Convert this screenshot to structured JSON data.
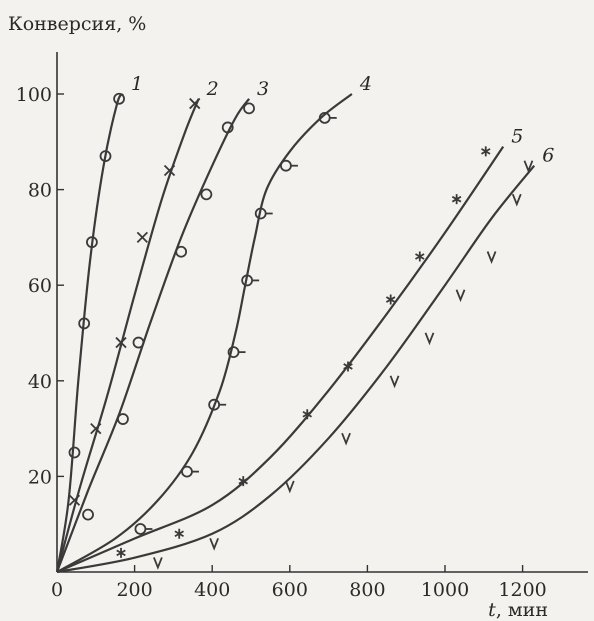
{
  "chart_data": {
    "type": "scatter",
    "ylabel": "Конверсия, %",
    "xlabel_var": "t",
    "xlabel_unit": ", мин",
    "xlim": [
      0,
      1300
    ],
    "ylim": [
      0,
      110
    ],
    "xticks": [
      0,
      200,
      400,
      600,
      800,
      1000,
      1200
    ],
    "yticks": [
      20,
      40,
      60,
      80,
      100
    ],
    "series": [
      {
        "name": "1",
        "marker": "circle",
        "points": [
          [
            45,
            25
          ],
          [
            70,
            52
          ],
          [
            90,
            69
          ],
          [
            125,
            87
          ],
          [
            160,
            99
          ]
        ],
        "curve": [
          [
            0,
            0
          ],
          [
            30,
            15
          ],
          [
            55,
            40
          ],
          [
            85,
            65
          ],
          [
            120,
            85
          ],
          [
            155,
            98
          ],
          [
            170,
            100
          ]
        ]
      },
      {
        "name": "2",
        "marker": "x",
        "points": [
          [
            45,
            15
          ],
          [
            100,
            30
          ],
          [
            165,
            48
          ],
          [
            220,
            70
          ],
          [
            290,
            84
          ],
          [
            355,
            98
          ]
        ],
        "curve": [
          [
            0,
            0
          ],
          [
            60,
            18
          ],
          [
            130,
            37
          ],
          [
            200,
            58
          ],
          [
            270,
            78
          ],
          [
            330,
            92
          ],
          [
            365,
            99
          ]
        ]
      },
      {
        "name": "3",
        "marker": "circle",
        "points": [
          [
            80,
            12
          ],
          [
            170,
            32
          ],
          [
            210,
            48
          ],
          [
            320,
            67
          ],
          [
            385,
            79
          ],
          [
            440,
            93
          ],
          [
            495,
            97
          ]
        ],
        "curve": [
          [
            0,
            0
          ],
          [
            80,
            17
          ],
          [
            160,
            33
          ],
          [
            240,
            52
          ],
          [
            320,
            70
          ],
          [
            400,
            85
          ],
          [
            460,
            95
          ],
          [
            495,
            99
          ]
        ]
      },
      {
        "name": "4",
        "marker": "circle-dash",
        "points": [
          [
            215,
            9
          ],
          [
            335,
            21
          ],
          [
            405,
            35
          ],
          [
            455,
            46
          ],
          [
            490,
            61
          ],
          [
            525,
            75
          ],
          [
            590,
            85
          ],
          [
            690,
            95
          ]
        ],
        "curve": [
          [
            0,
            0
          ],
          [
            150,
            7
          ],
          [
            260,
            15
          ],
          [
            350,
            25
          ],
          [
            420,
            38
          ],
          [
            460,
            50
          ],
          [
            485,
            60
          ],
          [
            510,
            70
          ],
          [
            540,
            80
          ],
          [
            600,
            88
          ],
          [
            680,
            95
          ],
          [
            760,
            100
          ]
        ]
      },
      {
        "name": "5",
        "marker": "asterisk",
        "points": [
          [
            165,
            4
          ],
          [
            315,
            8
          ],
          [
            480,
            19
          ],
          [
            645,
            33
          ],
          [
            750,
            43
          ],
          [
            860,
            57
          ],
          [
            935,
            66
          ],
          [
            1030,
            78
          ],
          [
            1105,
            88
          ]
        ],
        "curve": [
          [
            0,
            0
          ],
          [
            200,
            7
          ],
          [
            400,
            14
          ],
          [
            550,
            24
          ],
          [
            700,
            38
          ],
          [
            850,
            54
          ],
          [
            1000,
            71
          ],
          [
            1150,
            89
          ]
        ]
      },
      {
        "name": "6",
        "marker": "v",
        "points": [
          [
            260,
            2
          ],
          [
            405,
            6
          ],
          [
            600,
            18
          ],
          [
            745,
            28
          ],
          [
            870,
            40
          ],
          [
            960,
            49
          ],
          [
            1040,
            58
          ],
          [
            1120,
            66
          ],
          [
            1185,
            78
          ],
          [
            1215,
            85
          ]
        ],
        "curve": [
          [
            0,
            0
          ],
          [
            200,
            3
          ],
          [
            400,
            8
          ],
          [
            550,
            16
          ],
          [
            700,
            28
          ],
          [
            850,
            43
          ],
          [
            1000,
            60
          ],
          [
            1120,
            74
          ],
          [
            1230,
            85
          ]
        ]
      }
    ]
  }
}
